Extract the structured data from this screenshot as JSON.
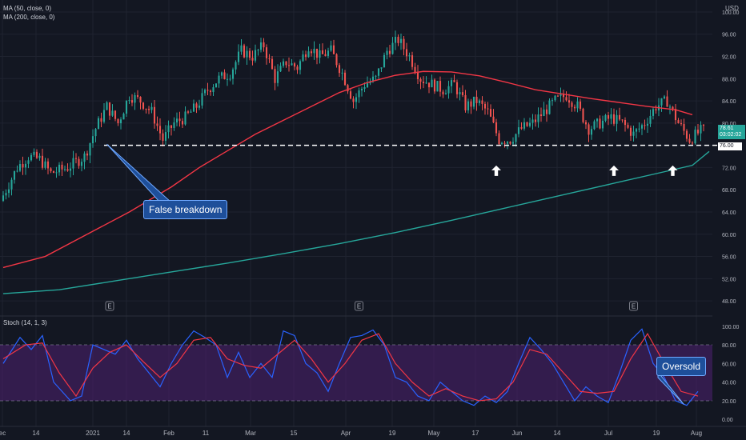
{
  "legend": {
    "ma50": "MA (50, close, 0)",
    "ma200": "MA (200, close, 0)",
    "stoch": "Stoch (14, 1, 3)"
  },
  "currency": "USD",
  "price_axis": [
    "100.00",
    "96.00",
    "92.00",
    "88.00",
    "84.00",
    "80.00",
    "76.00",
    "72.00",
    "68.00",
    "64.00",
    "60.00",
    "56.00",
    "52.00",
    "48.00"
  ],
  "stoch_axis": [
    "100.00",
    "80.00",
    "60.00",
    "40.00",
    "20.00",
    "0.00"
  ],
  "time_axis": [
    "ec",
    "14",
    "2021",
    "14",
    "Feb",
    "11",
    "Mar",
    "15",
    "Apr",
    "19",
    "May",
    "17",
    "Jun",
    "14",
    "Jul",
    "19",
    "Aug"
  ],
  "current_price": {
    "value": "78.61",
    "countdown": "03:02:02"
  },
  "support_level": {
    "value": 76.0,
    "label": "76.00"
  },
  "annotations": {
    "false_breakdown": "False breakdown",
    "oversold": "Oversold"
  },
  "earnings_marker": "E",
  "colors": {
    "background": "#131722",
    "up": "#26a69a",
    "down": "#ef5350",
    "ma50": "#f23645",
    "ma200": "#26a69a",
    "stoch_k": "#2962ff",
    "stoch_d": "#f23645",
    "stoch_band": "#4a1f6a",
    "callout": "#1e4f9a"
  },
  "chart_data": {
    "type": "candlestick",
    "y_range_price": [
      46,
      101
    ],
    "y_range_stoch": [
      -5,
      105
    ],
    "support": 76.0,
    "stoch_bands": [
      20,
      80
    ],
    "ma50": [
      [
        0,
        54
      ],
      [
        15,
        56
      ],
      [
        30,
        60
      ],
      [
        45,
        64
      ],
      [
        60,
        68.5
      ],
      [
        70,
        72
      ],
      [
        80,
        75
      ],
      [
        90,
        78
      ],
      [
        100,
        80.5
      ],
      [
        110,
        83
      ],
      [
        120,
        85.5
      ],
      [
        130,
        87.3
      ],
      [
        140,
        88.6
      ],
      [
        150,
        89.3
      ],
      [
        160,
        89.2
      ],
      [
        170,
        88.5
      ],
      [
        180,
        87.3
      ],
      [
        190,
        86
      ],
      [
        200,
        85.2
      ],
      [
        210,
        84.4
      ],
      [
        220,
        83.7
      ],
      [
        230,
        83
      ],
      [
        240,
        82.4
      ],
      [
        246,
        81.5
      ]
    ],
    "ma200": [
      [
        0,
        49.3
      ],
      [
        20,
        50
      ],
      [
        40,
        51.6
      ],
      [
        60,
        53.2
      ],
      [
        80,
        54.8
      ],
      [
        100,
        56.5
      ],
      [
        120,
        58.3
      ],
      [
        140,
        60.3
      ],
      [
        160,
        62.5
      ],
      [
        180,
        64.8
      ],
      [
        200,
        67.1
      ],
      [
        220,
        69.4
      ],
      [
        240,
        71.7
      ],
      [
        246,
        72.4
      ],
      [
        252,
        74.9
      ]
    ],
    "candles_anchor": [
      [
        0,
        66
      ],
      [
        6,
        72
      ],
      [
        10,
        74
      ],
      [
        14,
        73.5
      ],
      [
        18,
        71
      ],
      [
        24,
        72
      ],
      [
        30,
        74
      ],
      [
        34,
        79
      ],
      [
        38,
        83
      ],
      [
        42,
        80
      ],
      [
        46,
        85
      ],
      [
        50,
        84
      ],
      [
        54,
        82
      ],
      [
        58,
        77
      ],
      [
        62,
        80
      ],
      [
        66,
        81
      ],
      [
        70,
        83
      ],
      [
        74,
        86
      ],
      [
        78,
        88
      ],
      [
        82,
        89
      ],
      [
        86,
        93
      ],
      [
        90,
        92
      ],
      [
        94,
        94
      ],
      [
        98,
        88
      ],
      [
        102,
        91
      ],
      [
        106,
        90
      ],
      [
        110,
        94
      ],
      [
        114,
        92
      ],
      [
        118,
        93
      ],
      [
        122,
        89
      ],
      [
        126,
        84
      ],
      [
        130,
        87
      ],
      [
        134,
        88
      ],
      [
        138,
        93
      ],
      [
        142,
        95
      ],
      [
        146,
        92
      ],
      [
        150,
        88
      ],
      [
        154,
        87
      ],
      [
        158,
        86
      ],
      [
        162,
        87
      ],
      [
        166,
        83
      ],
      [
        170,
        84
      ],
      [
        174,
        82
      ],
      [
        178,
        77
      ],
      [
        182,
        77
      ],
      [
        186,
        79
      ],
      [
        190,
        80
      ],
      [
        194,
        82
      ],
      [
        198,
        84
      ],
      [
        202,
        85
      ],
      [
        206,
        83
      ],
      [
        210,
        79
      ],
      [
        214,
        80
      ],
      [
        218,
        81
      ],
      [
        222,
        80
      ],
      [
        226,
        78
      ],
      [
        230,
        80
      ],
      [
        234,
        83
      ],
      [
        238,
        84
      ],
      [
        242,
        80
      ],
      [
        246,
        77
      ],
      [
        250,
        78.6
      ]
    ],
    "stoch_k_anchor": [
      [
        0,
        60
      ],
      [
        6,
        88
      ],
      [
        10,
        75
      ],
      [
        14,
        90
      ],
      [
        18,
        40
      ],
      [
        24,
        20
      ],
      [
        28,
        25
      ],
      [
        32,
        80
      ],
      [
        36,
        75
      ],
      [
        40,
        70
      ],
      [
        44,
        85
      ],
      [
        48,
        65
      ],
      [
        52,
        50
      ],
      [
        56,
        35
      ],
      [
        60,
        60
      ],
      [
        64,
        80
      ],
      [
        68,
        95
      ],
      [
        72,
        88
      ],
      [
        76,
        80
      ],
      [
        80,
        45
      ],
      [
        84,
        72
      ],
      [
        88,
        45
      ],
      [
        92,
        60
      ],
      [
        96,
        45
      ],
      [
        100,
        95
      ],
      [
        104,
        90
      ],
      [
        108,
        60
      ],
      [
        112,
        50
      ],
      [
        116,
        30
      ],
      [
        120,
        60
      ],
      [
        124,
        88
      ],
      [
        128,
        90
      ],
      [
        132,
        96
      ],
      [
        136,
        80
      ],
      [
        140,
        45
      ],
      [
        144,
        40
      ],
      [
        148,
        25
      ],
      [
        152,
        20
      ],
      [
        156,
        40
      ],
      [
        160,
        30
      ],
      [
        164,
        20
      ],
      [
        168,
        15
      ],
      [
        172,
        25
      ],
      [
        176,
        18
      ],
      [
        180,
        30
      ],
      [
        184,
        60
      ],
      [
        188,
        88
      ],
      [
        192,
        75
      ],
      [
        196,
        60
      ],
      [
        200,
        40
      ],
      [
        204,
        20
      ],
      [
        208,
        35
      ],
      [
        212,
        25
      ],
      [
        216,
        18
      ],
      [
        220,
        50
      ],
      [
        224,
        85
      ],
      [
        228,
        97
      ],
      [
        232,
        60
      ],
      [
        236,
        45
      ],
      [
        240,
        20
      ],
      [
        244,
        15
      ],
      [
        248,
        30
      ]
    ],
    "stoch_d_anchor": [
      [
        0,
        65
      ],
      [
        8,
        80
      ],
      [
        14,
        82
      ],
      [
        20,
        50
      ],
      [
        26,
        25
      ],
      [
        32,
        55
      ],
      [
        38,
        72
      ],
      [
        44,
        80
      ],
      [
        50,
        62
      ],
      [
        56,
        45
      ],
      [
        62,
        60
      ],
      [
        68,
        85
      ],
      [
        74,
        88
      ],
      [
        80,
        65
      ],
      [
        86,
        58
      ],
      [
        92,
        55
      ],
      [
        98,
        70
      ],
      [
        104,
        85
      ],
      [
        110,
        65
      ],
      [
        116,
        40
      ],
      [
        122,
        60
      ],
      [
        128,
        85
      ],
      [
        134,
        92
      ],
      [
        140,
        60
      ],
      [
        146,
        40
      ],
      [
        152,
        25
      ],
      [
        158,
        33
      ],
      [
        164,
        25
      ],
      [
        170,
        20
      ],
      [
        176,
        22
      ],
      [
        182,
        40
      ],
      [
        188,
        75
      ],
      [
        194,
        70
      ],
      [
        200,
        50
      ],
      [
        206,
        30
      ],
      [
        212,
        28
      ],
      [
        218,
        30
      ],
      [
        224,
        65
      ],
      [
        230,
        92
      ],
      [
        236,
        60
      ],
      [
        242,
        30
      ],
      [
        248,
        25
      ]
    ]
  }
}
